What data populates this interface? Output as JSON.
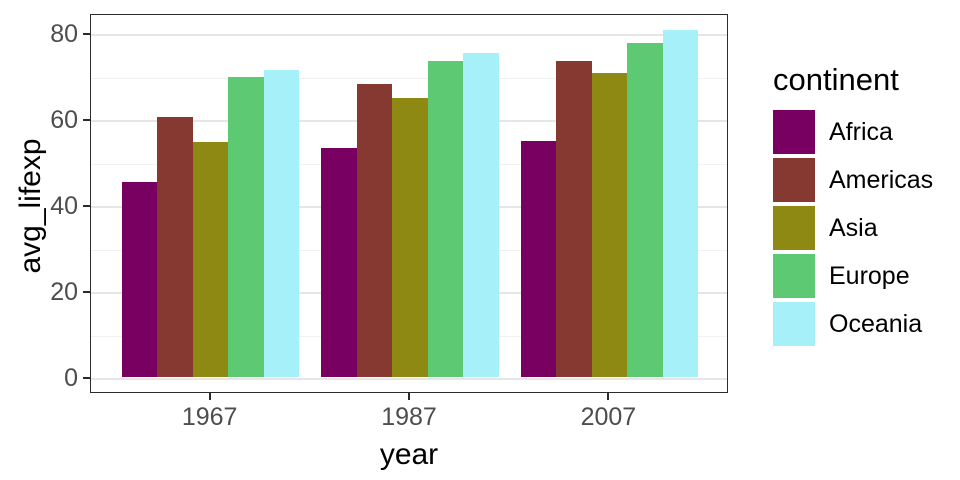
{
  "figure": {
    "background": "#FFFFFF",
    "panel": {
      "border_color": "#2B2B2B",
      "background": "#FFFFFF",
      "grid_major_color": "#E6E6E6",
      "grid_minor_color": "#F2F2F2"
    }
  },
  "chart_data": {
    "type": "bar",
    "title": "",
    "xlabel": "year",
    "ylabel": "avg_lifexp",
    "categories": [
      "1967",
      "1987",
      "2007"
    ],
    "series": [
      {
        "name": "Africa",
        "color": "#780060",
        "values": [
          45.3,
          53.3,
          54.8
        ]
      },
      {
        "name": "Americas",
        "color": "#853931",
        "values": [
          60.4,
          68.1,
          73.6
        ]
      },
      {
        "name": "Asia",
        "color": "#8D8913",
        "values": [
          54.7,
          64.9,
          70.7
        ]
      },
      {
        "name": "Europe",
        "color": "#5DC973",
        "values": [
          69.7,
          73.6,
          77.6
        ]
      },
      {
        "name": "Oceania",
        "color": "#A6F0FA",
        "values": [
          71.3,
          75.3,
          80.7
        ]
      }
    ],
    "y_ticks": [
      0,
      20,
      40,
      60,
      80
    ],
    "y_minor_ticks": [
      10,
      30,
      50,
      70
    ],
    "ylim": [
      -4.2,
      84.8
    ],
    "grid": "on",
    "legend": {
      "title": "continent",
      "position": "right"
    }
  }
}
